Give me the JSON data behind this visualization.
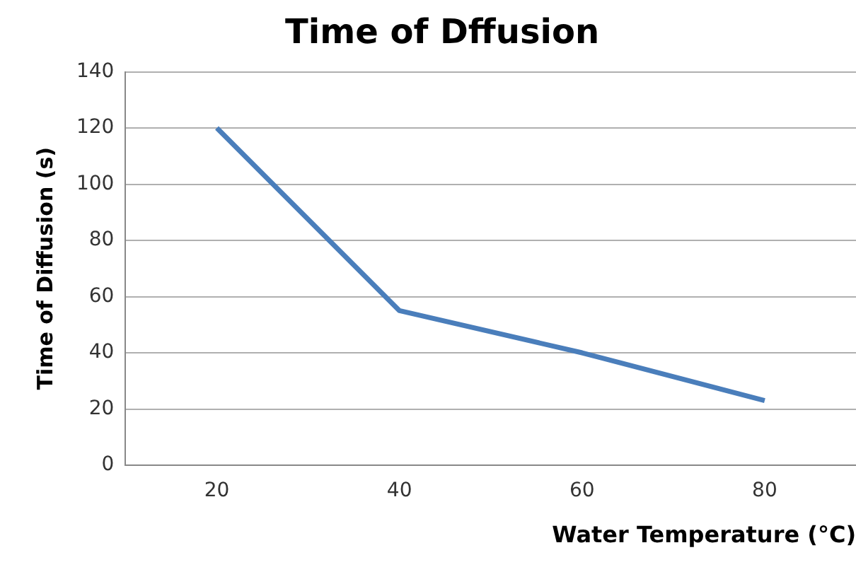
{
  "chart_data": {
    "type": "line",
    "title": "Time of Dffusion",
    "xlabel": "Water Temperature (°C)",
    "ylabel": "Time of Diffusion (s)",
    "categories": [
      "20",
      "40",
      "60",
      "80"
    ],
    "series": [
      {
        "color": "#4a7ebb",
        "values": [
          120,
          55,
          40,
          23
        ]
      }
    ],
    "ylim": [
      0,
      140
    ],
    "yticks": [
      0,
      20,
      40,
      60,
      80,
      100,
      120,
      140
    ],
    "grid": "y",
    "legend": false,
    "marker": "none",
    "line_style": "solid"
  }
}
